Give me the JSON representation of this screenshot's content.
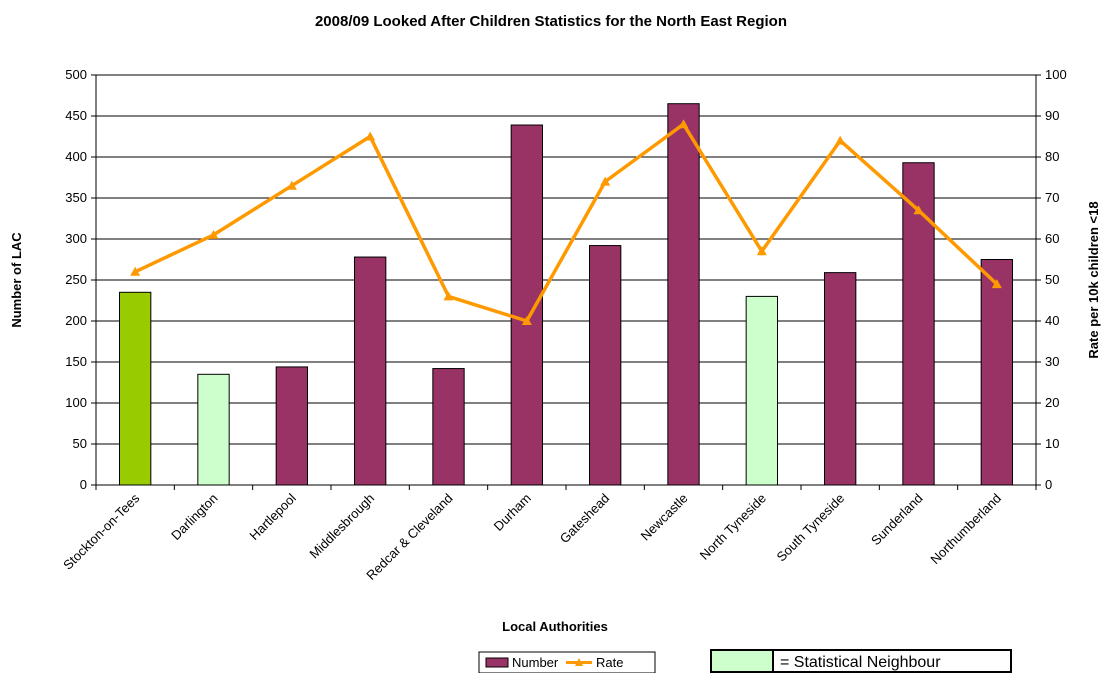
{
  "chart_data": {
    "type": "bar",
    "title": "2008/09 Looked After Children Statistics for the North East Region",
    "xlabel": "Local Authorities",
    "ylabel": "Number of LAC",
    "y2label": "Rate per 10k children <18",
    "ylim": [
      0,
      500
    ],
    "y2lim": [
      0,
      100
    ],
    "yticks": [
      "0",
      "50",
      "100",
      "150",
      "200",
      "250",
      "300",
      "350",
      "400",
      "450",
      "500"
    ],
    "y2ticks": [
      "0",
      "10",
      "20",
      "30",
      "40",
      "50",
      "60",
      "70",
      "80",
      "90",
      "100"
    ],
    "grid": true,
    "legend_position": "bottom-center",
    "categories": [
      "Stockton-on-Tees",
      "Darlington",
      "Hartlepool",
      "Middlesbrough",
      "Redcar & Cleveland",
      "Durham",
      "Gateshead",
      "Newcastle",
      "North Tyneside",
      "South Tyneside",
      "Sunderland",
      "Northumberland"
    ],
    "series": [
      {
        "name": "Number",
        "type": "bar",
        "axis": "left",
        "color": "#993366",
        "values": [
          235,
          135,
          144,
          278,
          142,
          439,
          292,
          465,
          230,
          259,
          393,
          275
        ]
      },
      {
        "name": "Rate",
        "type": "line",
        "axis": "right",
        "color": "#FF9900",
        "values": [
          52,
          61,
          73,
          85,
          46,
          40,
          74,
          88,
          57,
          84,
          67,
          49
        ]
      }
    ],
    "bar_colors": [
      "#99CC00",
      "#CCFFCC",
      "#993366",
      "#993366",
      "#993366",
      "#993366",
      "#993366",
      "#993366",
      "#CCFFCC",
      "#993366",
      "#993366",
      "#993366"
    ],
    "statistical_neighbour_legend": {
      "label": "= Statistical Neighbour",
      "color": "#CCFFCC"
    }
  }
}
